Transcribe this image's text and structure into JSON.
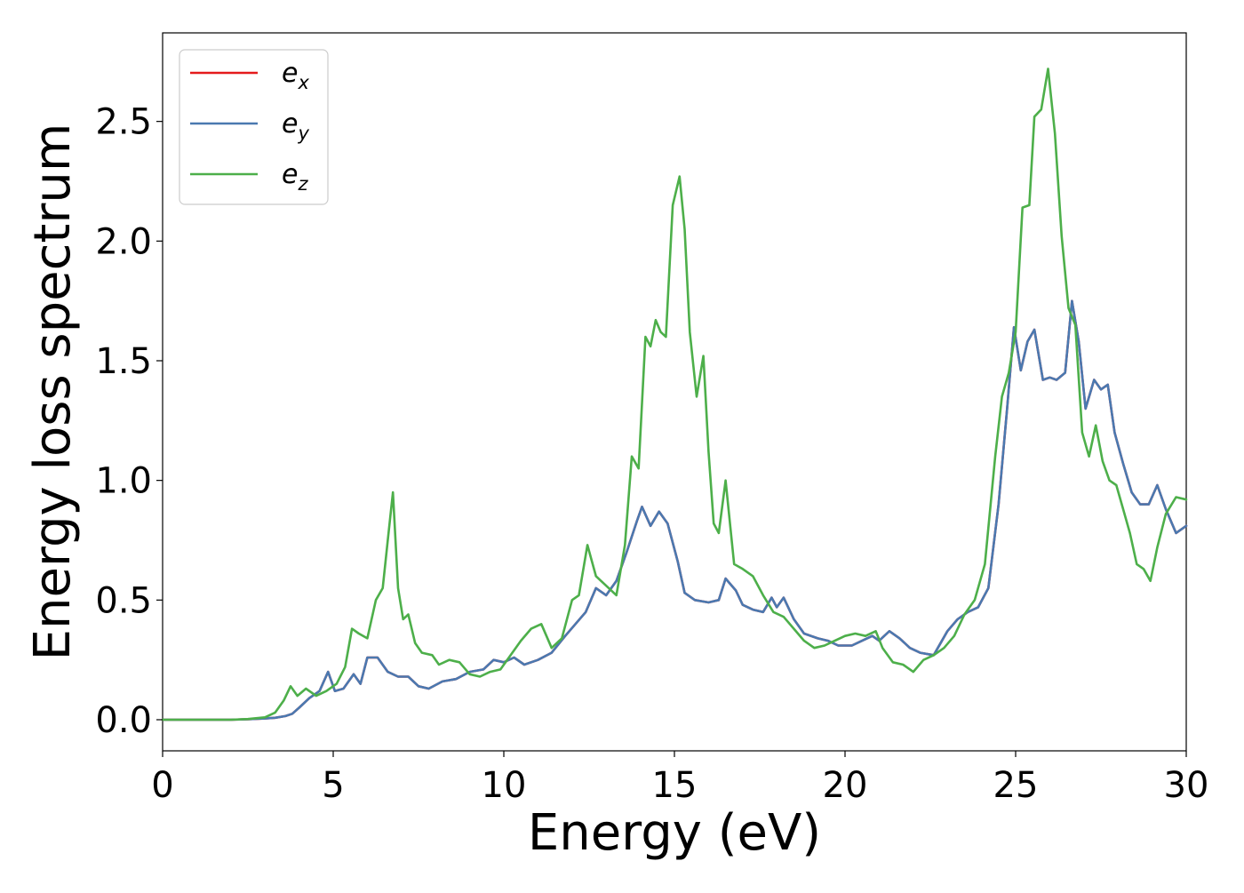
{
  "chart_data": {
    "type": "line",
    "title": "",
    "xlabel": "Energy (eV)",
    "ylabel": "Energy loss spectrum",
    "xlim": [
      0,
      30
    ],
    "ylim": [
      -0.13,
      2.87
    ],
    "xticks": [
      0,
      5,
      10,
      15,
      20,
      25,
      30
    ],
    "xtick_labels": [
      "0",
      "5",
      "10",
      "15",
      "20",
      "25",
      "30"
    ],
    "yticks": [
      0.0,
      0.5,
      1.0,
      1.5,
      2.0,
      2.5
    ],
    "ytick_labels": [
      "0.0",
      "0.5",
      "1.0",
      "1.5",
      "2.0",
      "2.5"
    ],
    "grid": false,
    "legend_position": "top-left",
    "series": [
      {
        "name": "e_x",
        "label_base": "e",
        "label_sub": "x",
        "color": "#e41a1c",
        "x": [
          0,
          1,
          2,
          2.5,
          3,
          3.3,
          3.6,
          3.8,
          4.0,
          4.3,
          4.6,
          4.85,
          5.05,
          5.3,
          5.6,
          5.8,
          6.0,
          6.3,
          6.6,
          6.9,
          7.2,
          7.5,
          7.8,
          8.2,
          8.6,
          9.0,
          9.4,
          9.7,
          10.0,
          10.3,
          10.6,
          11.0,
          11.4,
          11.8,
          12.1,
          12.4,
          12.7,
          13.0,
          13.3,
          13.6,
          13.9,
          14.05,
          14.3,
          14.55,
          14.8,
          15.1,
          15.3,
          15.6,
          16.0,
          16.3,
          16.5,
          16.8,
          17.0,
          17.3,
          17.6,
          17.85,
          18.0,
          18.2,
          18.5,
          18.8,
          19.2,
          19.5,
          19.8,
          20.2,
          20.5,
          20.8,
          21.0,
          21.3,
          21.6,
          21.9,
          22.2,
          22.6,
          23.0,
          23.3,
          23.6,
          23.9,
          24.2,
          24.5,
          24.75,
          24.95,
          25.15,
          25.35,
          25.55,
          25.8,
          26.0,
          26.2,
          26.45,
          26.65,
          26.85,
          27.05,
          27.3,
          27.5,
          27.7,
          27.9,
          28.15,
          28.4,
          28.65,
          28.9,
          29.15,
          29.4,
          29.7,
          30.0
        ],
        "y": [
          0.0,
          0.0,
          0.0,
          0.002,
          0.005,
          0.008,
          0.015,
          0.025,
          0.05,
          0.09,
          0.12,
          0.2,
          0.12,
          0.13,
          0.19,
          0.15,
          0.26,
          0.26,
          0.2,
          0.18,
          0.18,
          0.14,
          0.13,
          0.16,
          0.17,
          0.2,
          0.21,
          0.25,
          0.24,
          0.26,
          0.23,
          0.25,
          0.28,
          0.35,
          0.4,
          0.45,
          0.55,
          0.52,
          0.58,
          0.7,
          0.83,
          0.89,
          0.81,
          0.87,
          0.82,
          0.66,
          0.53,
          0.5,
          0.49,
          0.5,
          0.59,
          0.54,
          0.48,
          0.46,
          0.45,
          0.51,
          0.47,
          0.51,
          0.42,
          0.36,
          0.34,
          0.33,
          0.31,
          0.31,
          0.33,
          0.35,
          0.33,
          0.37,
          0.34,
          0.3,
          0.28,
          0.27,
          0.37,
          0.42,
          0.45,
          0.47,
          0.55,
          0.9,
          1.3,
          1.64,
          1.46,
          1.58,
          1.63,
          1.42,
          1.43,
          1.42,
          1.45,
          1.75,
          1.58,
          1.3,
          1.42,
          1.38,
          1.4,
          1.2,
          1.07,
          0.95,
          0.9,
          0.9,
          0.98,
          0.88,
          0.78,
          0.81
        ]
      },
      {
        "name": "e_y",
        "label_base": "e",
        "label_sub": "y",
        "color": "#4a79b0",
        "x": [
          0,
          1,
          2,
          2.5,
          3,
          3.3,
          3.6,
          3.8,
          4.0,
          4.3,
          4.6,
          4.85,
          5.05,
          5.3,
          5.6,
          5.8,
          6.0,
          6.3,
          6.6,
          6.9,
          7.2,
          7.5,
          7.8,
          8.2,
          8.6,
          9.0,
          9.4,
          9.7,
          10.0,
          10.3,
          10.6,
          11.0,
          11.4,
          11.8,
          12.1,
          12.4,
          12.7,
          13.0,
          13.3,
          13.6,
          13.9,
          14.05,
          14.3,
          14.55,
          14.8,
          15.1,
          15.3,
          15.6,
          16.0,
          16.3,
          16.5,
          16.8,
          17.0,
          17.3,
          17.6,
          17.85,
          18.0,
          18.2,
          18.5,
          18.8,
          19.2,
          19.5,
          19.8,
          20.2,
          20.5,
          20.8,
          21.0,
          21.3,
          21.6,
          21.9,
          22.2,
          22.6,
          23.0,
          23.3,
          23.6,
          23.9,
          24.2,
          24.5,
          24.75,
          24.95,
          25.15,
          25.35,
          25.55,
          25.8,
          26.0,
          26.2,
          26.45,
          26.65,
          26.85,
          27.05,
          27.3,
          27.5,
          27.7,
          27.9,
          28.15,
          28.4,
          28.65,
          28.9,
          29.15,
          29.4,
          29.7,
          30.0
        ],
        "y": [
          0.0,
          0.0,
          0.0,
          0.002,
          0.005,
          0.008,
          0.015,
          0.025,
          0.05,
          0.09,
          0.12,
          0.2,
          0.12,
          0.13,
          0.19,
          0.15,
          0.26,
          0.26,
          0.2,
          0.18,
          0.18,
          0.14,
          0.13,
          0.16,
          0.17,
          0.2,
          0.21,
          0.25,
          0.24,
          0.26,
          0.23,
          0.25,
          0.28,
          0.35,
          0.4,
          0.45,
          0.55,
          0.52,
          0.58,
          0.7,
          0.83,
          0.89,
          0.81,
          0.87,
          0.82,
          0.66,
          0.53,
          0.5,
          0.49,
          0.5,
          0.59,
          0.54,
          0.48,
          0.46,
          0.45,
          0.51,
          0.47,
          0.51,
          0.42,
          0.36,
          0.34,
          0.33,
          0.31,
          0.31,
          0.33,
          0.35,
          0.33,
          0.37,
          0.34,
          0.3,
          0.28,
          0.27,
          0.37,
          0.42,
          0.45,
          0.47,
          0.55,
          0.9,
          1.3,
          1.64,
          1.46,
          1.58,
          1.63,
          1.42,
          1.43,
          1.42,
          1.45,
          1.75,
          1.58,
          1.3,
          1.42,
          1.38,
          1.4,
          1.2,
          1.07,
          0.95,
          0.9,
          0.9,
          0.98,
          0.88,
          0.78,
          0.81
        ]
      },
      {
        "name": "e_z",
        "label_base": "e",
        "label_sub": "z",
        "color": "#4daf4a",
        "x": [
          0,
          1,
          2,
          2.5,
          3,
          3.3,
          3.55,
          3.75,
          3.95,
          4.2,
          4.5,
          4.8,
          5.1,
          5.35,
          5.55,
          5.75,
          6.0,
          6.25,
          6.45,
          6.6,
          6.75,
          6.9,
          7.05,
          7.2,
          7.4,
          7.6,
          7.9,
          8.1,
          8.4,
          8.7,
          9.0,
          9.3,
          9.6,
          9.9,
          10.2,
          10.5,
          10.8,
          11.1,
          11.4,
          11.7,
          12.0,
          12.2,
          12.45,
          12.7,
          13.0,
          13.3,
          13.55,
          13.75,
          13.95,
          14.15,
          14.3,
          14.45,
          14.6,
          14.75,
          14.95,
          15.15,
          15.3,
          15.45,
          15.65,
          15.85,
          16.0,
          16.15,
          16.3,
          16.5,
          16.75,
          17.0,
          17.3,
          17.6,
          17.9,
          18.2,
          18.5,
          18.8,
          19.1,
          19.4,
          19.7,
          20.0,
          20.3,
          20.6,
          20.9,
          21.1,
          21.4,
          21.7,
          22.0,
          22.3,
          22.6,
          22.9,
          23.2,
          23.5,
          23.8,
          24.1,
          24.4,
          24.6,
          24.8,
          25.0,
          25.2,
          25.4,
          25.55,
          25.75,
          25.95,
          26.15,
          26.35,
          26.55,
          26.75,
          26.95,
          27.15,
          27.35,
          27.55,
          27.75,
          27.95,
          28.15,
          28.35,
          28.55,
          28.75,
          28.95,
          29.15,
          29.4,
          29.7,
          30.0
        ],
        "y": [
          0.0,
          0.0,
          0.0,
          0.003,
          0.01,
          0.03,
          0.08,
          0.14,
          0.1,
          0.13,
          0.1,
          0.12,
          0.15,
          0.22,
          0.38,
          0.36,
          0.34,
          0.5,
          0.55,
          0.75,
          0.95,
          0.55,
          0.42,
          0.44,
          0.32,
          0.28,
          0.27,
          0.23,
          0.25,
          0.24,
          0.19,
          0.18,
          0.2,
          0.21,
          0.27,
          0.33,
          0.38,
          0.4,
          0.3,
          0.34,
          0.5,
          0.52,
          0.73,
          0.6,
          0.56,
          0.52,
          0.73,
          1.1,
          1.05,
          1.6,
          1.56,
          1.67,
          1.62,
          1.6,
          2.15,
          2.27,
          2.05,
          1.62,
          1.35,
          1.52,
          1.12,
          0.82,
          0.78,
          1.0,
          0.65,
          0.63,
          0.6,
          0.52,
          0.45,
          0.43,
          0.38,
          0.33,
          0.3,
          0.31,
          0.33,
          0.35,
          0.36,
          0.35,
          0.37,
          0.3,
          0.24,
          0.23,
          0.2,
          0.25,
          0.27,
          0.3,
          0.35,
          0.44,
          0.5,
          0.65,
          1.1,
          1.35,
          1.45,
          1.62,
          2.14,
          2.15,
          2.52,
          2.55,
          2.72,
          2.45,
          2.02,
          1.72,
          1.65,
          1.2,
          1.1,
          1.23,
          1.08,
          1.0,
          0.98,
          0.88,
          0.78,
          0.65,
          0.63,
          0.58,
          0.72,
          0.86,
          0.93,
          0.92
        ]
      }
    ]
  }
}
